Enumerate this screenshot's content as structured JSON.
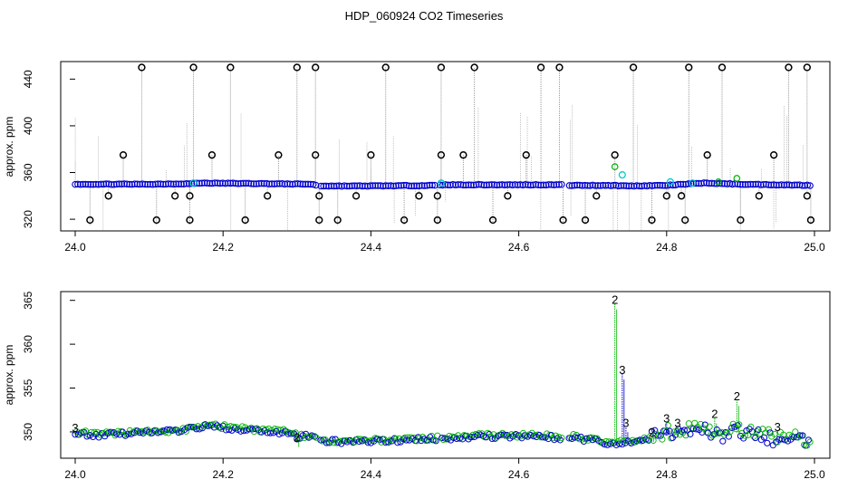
{
  "title": "HDP_060924  CO2 Timeseries",
  "colors": {
    "raw_points": "#000000",
    "raw_lines": "#999999",
    "series_2": "#00b400",
    "series_3": "#0000cc",
    "highlight": "#00cccc"
  },
  "chart_data": [
    {
      "type": "scatter",
      "ylabel": "approx. ppm",
      "xlim": [
        24.0,
        25.0
      ],
      "ylim": [
        310,
        455
      ],
      "xticks": [
        "24.0",
        "24.2",
        "24.4",
        "24.6",
        "24.8",
        "25.0"
      ],
      "yticks": [
        "320",
        "360",
        "400",
        "440"
      ],
      "baseline": [
        [
          24.0,
          350
        ],
        [
          24.05,
          350
        ],
        [
          24.1,
          350
        ],
        [
          24.16,
          350.5
        ],
        [
          24.17,
          351
        ],
        [
          24.25,
          350.5
        ],
        [
          24.32,
          350
        ],
        [
          24.33,
          348.5
        ],
        [
          24.4,
          348.5
        ],
        [
          24.49,
          349
        ],
        [
          24.5,
          349.5
        ],
        [
          24.66,
          349.5
        ],
        [
          24.67,
          349
        ],
        [
          24.72,
          349
        ],
        [
          24.75,
          348.5
        ],
        [
          24.8,
          349
        ],
        [
          24.85,
          351
        ],
        [
          24.9,
          350
        ],
        [
          25.0,
          349
        ]
      ],
      "outliers_high": [
        24.09,
        24.16,
        24.21,
        24.3,
        24.325,
        24.42,
        24.495,
        24.54,
        24.63,
        24.655,
        24.755,
        24.83,
        24.875,
        24.965,
        24.99
      ],
      "outliers_high_value": 450,
      "outliers_low": [
        24.02,
        24.11,
        24.155,
        24.23,
        24.33,
        24.355,
        24.445,
        24.49,
        24.565,
        24.66,
        24.69,
        24.78,
        24.825,
        24.9,
        24.995
      ],
      "outliers_low_value": 315,
      "outliers_mid": [
        [
          24.045,
          340
        ],
        [
          24.065,
          375
        ],
        [
          24.135,
          340
        ],
        [
          24.155,
          340
        ],
        [
          24.185,
          375
        ],
        [
          24.26,
          340
        ],
        [
          24.275,
          375
        ],
        [
          24.33,
          340
        ],
        [
          24.325,
          375
        ],
        [
          24.38,
          340
        ],
        [
          24.4,
          375
        ],
        [
          24.465,
          340
        ],
        [
          24.495,
          375
        ],
        [
          24.49,
          340
        ],
        [
          24.525,
          375
        ],
        [
          24.585,
          340
        ],
        [
          24.61,
          375
        ],
        [
          24.705,
          340
        ],
        [
          24.73,
          375
        ],
        [
          24.8,
          340
        ],
        [
          24.82,
          340
        ],
        [
          24.855,
          375
        ],
        [
          24.925,
          340
        ],
        [
          24.945,
          375
        ],
        [
          24.99,
          340
        ]
      ],
      "highlights": [
        [
          24.16,
          351
        ],
        [
          24.495,
          351
        ],
        [
          24.74,
          358
        ],
        [
          24.835,
          351
        ],
        [
          24.805,
          352
        ]
      ],
      "green_points": [
        [
          24.73,
          365
        ],
        [
          24.87,
          352
        ],
        [
          24.895,
          355
        ]
      ]
    },
    {
      "type": "scatter",
      "ylabel": "approx. ppm",
      "xlim": [
        24.0,
        25.0
      ],
      "ylim": [
        347,
        366
      ],
      "xticks": [
        "24.0",
        "24.2",
        "24.4",
        "24.6",
        "24.8",
        "25.0"
      ],
      "yticks": [
        "350",
        "355",
        "360",
        "365"
      ],
      "baseline": [
        [
          24.0,
          349.9
        ],
        [
          24.03,
          349.6
        ],
        [
          24.06,
          349.8
        ],
        [
          24.1,
          349.9
        ],
        [
          24.15,
          350.2
        ],
        [
          24.165,
          350.6
        ],
        [
          24.2,
          350.5
        ],
        [
          24.25,
          350.1
        ],
        [
          24.29,
          349.9
        ],
        [
          24.3,
          349.4
        ],
        [
          24.32,
          349.6
        ],
        [
          24.33,
          348.9
        ],
        [
          24.4,
          348.9
        ],
        [
          24.45,
          349.1
        ],
        [
          24.49,
          349.2
        ],
        [
          24.5,
          349.3
        ],
        [
          24.56,
          349.5
        ],
        [
          24.62,
          349.5
        ],
        [
          24.66,
          349.3
        ],
        [
          24.67,
          349.4
        ],
        [
          24.7,
          349.0
        ],
        [
          24.72,
          348.7
        ],
        [
          24.74,
          348.7
        ],
        [
          24.76,
          348.9
        ],
        [
          24.79,
          349.6
        ],
        [
          24.82,
          349.9
        ],
        [
          24.84,
          350.4
        ],
        [
          24.86,
          349.9
        ],
        [
          24.88,
          349.7
        ],
        [
          24.9,
          350.0
        ],
        [
          24.93,
          349.4
        ],
        [
          24.96,
          349.0
        ],
        [
          25.0,
          348.8
        ]
      ],
      "spikes": [
        {
          "series": "2",
          "x": 24.73,
          "y": 365.0
        },
        {
          "series": "3",
          "x": 24.74,
          "y": 357.0
        },
        {
          "series": "2",
          "x": 24.895,
          "y": 354.0
        },
        {
          "series": "3",
          "x": 24.8,
          "y": 351.5
        },
        {
          "series": "3",
          "x": 24.815,
          "y": 351.0
        },
        {
          "series": "2",
          "x": 24.865,
          "y": 352.0
        },
        {
          "series": "3",
          "x": 24.95,
          "y": 350.5
        },
        {
          "series": "3",
          "x": 24.0,
          "y": 350.4
        },
        {
          "series": "2",
          "x": 24.3,
          "y": 349.3
        },
        {
          "series": "3",
          "x": 24.745,
          "y": 351.0
        },
        {
          "series": "2",
          "x": 24.78,
          "y": 349.9
        }
      ]
    }
  ]
}
